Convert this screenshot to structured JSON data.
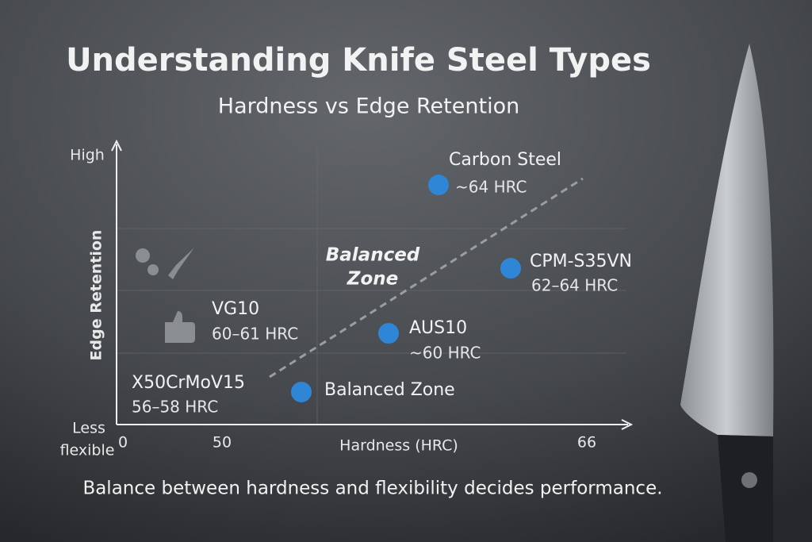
{
  "header": {
    "title": "Understanding Knife Steel Types",
    "subtitle": "Hardness vs Edge Retention"
  },
  "axes": {
    "y_label": "Edge Retention",
    "y_top": "High",
    "y_bottom": [
      "Less",
      "flexible"
    ],
    "x_label": "Hardness (HRC)",
    "x_ticks": [
      "0",
      "50",
      "66"
    ]
  },
  "zone_label": [
    "Balanced",
    "Zone"
  ],
  "points": [
    {
      "name": "Carbon Steel",
      "hardness": "~64 HRC"
    },
    {
      "name": "CPM-S35VN",
      "hardness": "62–64 HRC"
    },
    {
      "name": "AUS10",
      "hardness": "~60 HRC"
    },
    {
      "name": "Balanced Zone"
    }
  ],
  "labels": [
    {
      "name": "VG10",
      "hardness": "60–61 HRC"
    },
    {
      "name": "X50CrMoV15",
      "hardness": "56–58 HRC"
    }
  ],
  "footer": "Balance between hardness and flexibility decides performance."
}
